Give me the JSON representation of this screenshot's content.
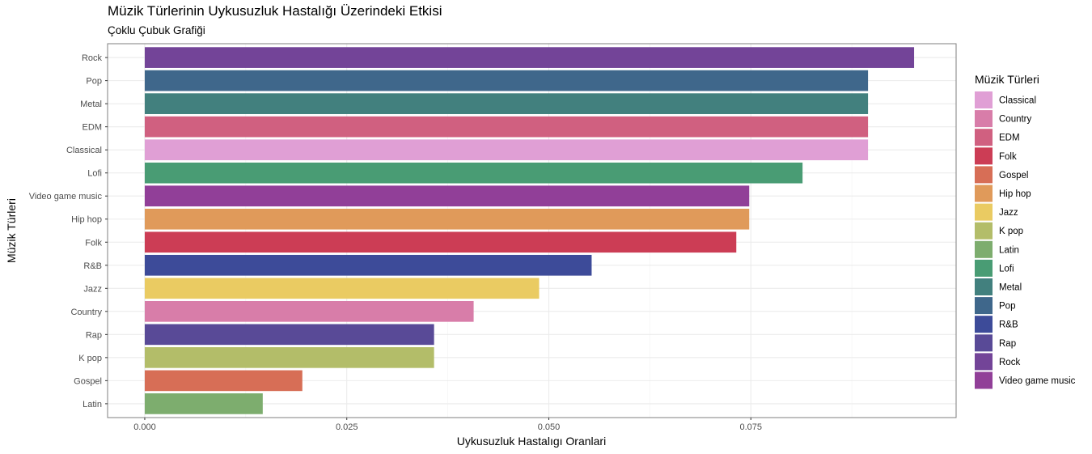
{
  "title": "Müzik Türlerinin Uykusuzluk Hastalığı Üzerindeki Etkisi",
  "subtitle": "Çoklu Çubuk Grafiği",
  "chart_data": {
    "type": "bar",
    "orientation": "horizontal",
    "title": "Müzik Türlerinin Uykusuzluk Hastalığı Üzerindeki Etkisi",
    "subtitle": "Çoklu Çubuk Grafiği",
    "xlabel": "Uykusuzluk Hastalıgı Oranlari",
    "ylabel": "Müzik Türleri",
    "xlim": [
      -0.0046,
      0.1004
    ],
    "x_ticks": [
      0.0,
      0.025,
      0.05,
      0.075
    ],
    "x_tick_labels": [
      "0.000",
      "0.025",
      "0.050",
      "0.075"
    ],
    "grid": true,
    "legend_title": "Müzik Türleri",
    "legend_position": "right",
    "categories": [
      "Rock",
      "Pop",
      "Metal",
      "EDM",
      "Classical",
      "Lofi",
      "Video game music",
      "Hip hop",
      "Folk",
      "R&B",
      "Jazz",
      "Country",
      "Rap",
      "K pop",
      "Gospel",
      "Latin"
    ],
    "values": [
      0.0952,
      0.0895,
      0.0895,
      0.0895,
      0.0895,
      0.0814,
      0.0748,
      0.0748,
      0.0732,
      0.0553,
      0.0488,
      0.0407,
      0.0358,
      0.0358,
      0.0195,
      0.0146
    ],
    "colors": {
      "Classical": "#E09FD5",
      "Country": "#D87DA9",
      "EDM": "#D06080",
      "Folk": "#CC3D55",
      "Gospel": "#D76E56",
      "Hip hop": "#E09A5A",
      "Jazz": "#EACB62",
      "K pop": "#B3BD69",
      "Latin": "#7DAD6E",
      "Lofi": "#499C74",
      "Metal": "#42807E",
      "Pop": "#3F678B",
      "R&B": "#3D4B99",
      "Rap": "#594A97",
      "Rock": "#734498",
      "Video game music": "#913F98"
    },
    "legend": [
      "Classical",
      "Country",
      "EDM",
      "Folk",
      "Gospel",
      "Hip hop",
      "Jazz",
      "K pop",
      "Latin",
      "Lofi",
      "Metal",
      "Pop",
      "R&B",
      "Rap",
      "Rock",
      "Video game music"
    ]
  }
}
